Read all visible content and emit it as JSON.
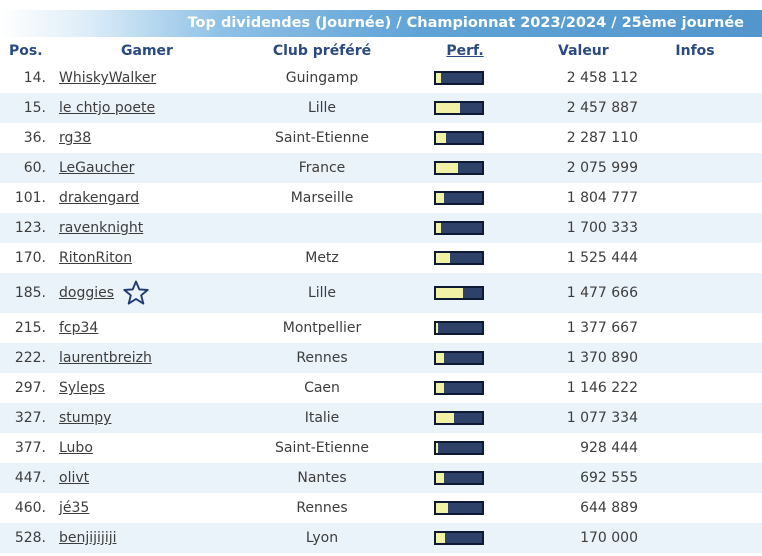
{
  "banner": {
    "title": "Top dividendes (Journée) / Championnat 2023/2024 / 25ème journée"
  },
  "columns": {
    "pos": "Pos.",
    "gamer": "Gamer",
    "club": "Club préféré",
    "perf": "Perf.",
    "value": "Valeur",
    "infos": "Infos"
  },
  "colors": {
    "bar_track": "#2e4168",
    "bar_fill": "#f1f2a6",
    "header_text": "#2a4a80",
    "row_alt": "#eaf2fa"
  },
  "rows": [
    {
      "pos": "14.",
      "gamer": "WhiskyWalker",
      "club": "Guingamp",
      "perf": 0.1,
      "value": "2 458 112"
    },
    {
      "pos": "15.",
      "gamer": "le chtjo poete",
      "club": "Lille",
      "perf": 0.52,
      "value": "2 457 887"
    },
    {
      "pos": "36.",
      "gamer": "rg38",
      "club": "Saint-Etienne",
      "perf": 0.22,
      "value": "2 287 110"
    },
    {
      "pos": "60.",
      "gamer": "LeGaucher",
      "club": "France",
      "perf": 0.48,
      "value": "2 075 999"
    },
    {
      "pos": "101.",
      "gamer": "drakengard",
      "club": "Marseille",
      "perf": 0.18,
      "value": "1 804 777"
    },
    {
      "pos": "123.",
      "gamer": "ravenknight",
      "club": "",
      "perf": 0.1,
      "value": "1 700 333"
    },
    {
      "pos": "170.",
      "gamer": "RitonRiton",
      "club": "Metz",
      "perf": 0.3,
      "value": "1 525 444"
    },
    {
      "pos": "185.",
      "gamer": "doggies",
      "club": "Lille",
      "perf": 0.58,
      "value": "1 477 666",
      "star": true
    },
    {
      "pos": "215.",
      "gamer": "fcp34",
      "club": "Montpellier",
      "perf": 0.05,
      "value": "1 377 667"
    },
    {
      "pos": "222.",
      "gamer": "laurentbreizh",
      "club": "Rennes",
      "perf": 0.18,
      "value": "1 370 890"
    },
    {
      "pos": "297.",
      "gamer": "Syleps",
      "club": "Caen",
      "perf": 0.18,
      "value": "1 146 222"
    },
    {
      "pos": "327.",
      "gamer": "stumpy",
      "club": "Italie",
      "perf": 0.4,
      "value": "1 077 334"
    },
    {
      "pos": "377.",
      "gamer": "Lubo",
      "club": "Saint-Etienne",
      "perf": 0.04,
      "value": "928 444"
    },
    {
      "pos": "447.",
      "gamer": "olivt",
      "club": "Nantes",
      "perf": 0.18,
      "value": "692 555"
    },
    {
      "pos": "460.",
      "gamer": "jé35",
      "club": "Rennes",
      "perf": 0.26,
      "value": "644 889"
    },
    {
      "pos": "528.",
      "gamer": "benjijijiji",
      "club": "Lyon",
      "perf": 0.2,
      "value": "170 000"
    }
  ]
}
